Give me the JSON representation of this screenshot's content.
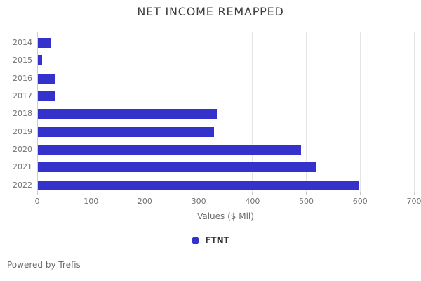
{
  "chart_data": {
    "type": "bar",
    "orientation": "horizontal",
    "title": "NET INCOME REMAPPED",
    "categories": [
      "2014",
      "2015",
      "2016",
      "2017",
      "2018",
      "2019",
      "2020",
      "2021",
      "2022"
    ],
    "series": [
      {
        "name": "FTNT",
        "color": "#3532cb",
        "values": [
          25,
          8,
          32,
          31,
          332,
          327,
          489,
          516,
          597
        ]
      }
    ],
    "xlabel": "Values ($ Mil)",
    "xlim": [
      0,
      700
    ],
    "xticks": [
      0,
      100,
      200,
      300,
      400,
      500,
      600,
      700
    ],
    "grid": true,
    "legend_position": "bottom"
  },
  "legend": {
    "items": [
      {
        "label": "FTNT",
        "color": "#3532cb"
      }
    ]
  },
  "footer": {
    "text": "Powered by Trefis"
  },
  "colors": {
    "bar": "#3532cb",
    "gridline": "#e5e5e5",
    "axis_line": "#c4cfe6",
    "axis_text": "#737373",
    "title_text": "#3d3d3d"
  }
}
